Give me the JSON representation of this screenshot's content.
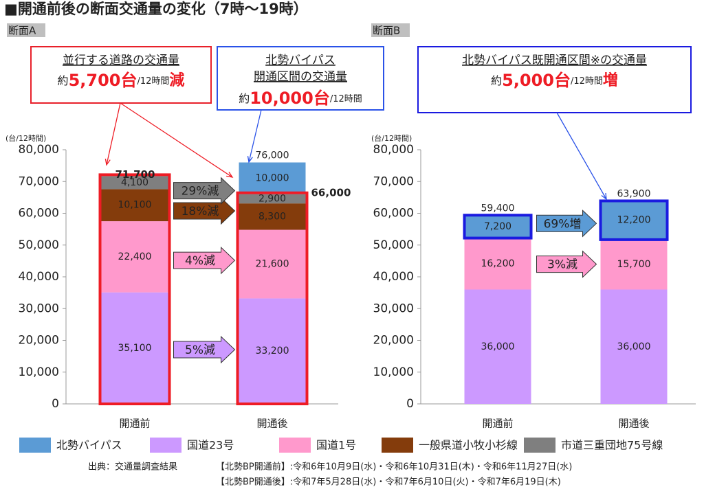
{
  "title": "■開通前後の断面交通量の変化（7時～19時）",
  "footer": {
    "source": "出典：交通量調査結果",
    "dates": [
      "【北勢BP開通前】:令和6年10月9日(水)・令和6年10月31日(木)・令和6年11月27日(水)",
      "【北勢BP開通後】:令和7年5月28日(水)・令和7年6月10日(火)・令和7年6月19日(木)"
    ]
  },
  "chart_data": [
    {
      "type": "bar",
      "stacked": true,
      "section": "断面A",
      "y_unit": "(台/12時間)",
      "categories": [
        "開通前",
        "開通後"
      ],
      "ylim": [
        0,
        80000
      ],
      "yticks": [
        0,
        {
          "value": 10000,
          "label": "10,000"
        },
        {
          "value": 20000,
          "label": "20,000"
        },
        {
          "value": 30000,
          "label": "30,000"
        },
        {
          "value": 40000,
          "label": "40,000"
        },
        {
          "value": 50000,
          "label": "50,000"
        },
        {
          "value": 60000,
          "label": "60,000"
        },
        {
          "value": 70000,
          "label": "70,000"
        },
        {
          "value": 80000,
          "label": "80,000"
        }
      ],
      "series": [
        {
          "name": "北勢バイパス",
          "color": "#5b9bd5",
          "label_color": "#ffffff",
          "values": [
            null,
            10000
          ],
          "value_labels": [
            null,
            "10,000"
          ]
        },
        {
          "name": "国道23号",
          "color": "#cc99ff",
          "label_color": "#ffffff",
          "values": [
            35100,
            33200
          ],
          "value_labels": [
            "35,100",
            "33,200"
          ],
          "change_label": "5%減"
        },
        {
          "name": "国道1号",
          "color": "#ff99cc",
          "label_color": "#444444",
          "values": [
            22400,
            21600
          ],
          "value_labels": [
            "22,400",
            "21,600"
          ],
          "change_label": "4%減"
        },
        {
          "name": "一般県道小牧小杉線",
          "color": "#843c0c",
          "label_color": "#ffffff",
          "values": [
            10100,
            8300
          ],
          "value_labels": [
            "10,100",
            "8,300"
          ],
          "change_label": "18%減"
        },
        {
          "name": "市道三重団地75号線",
          "color": "#7f7f7f",
          "label_color": "#ffffff",
          "values": [
            4100,
            2900
          ],
          "value_labels": [
            "4,100",
            "2,900"
          ],
          "change_label": "29%減"
        }
      ],
      "totals": {
        "values": [
          71700,
          76000
        ],
        "value_labels": [
          "71,700",
          "76,000"
        ]
      },
      "existing_total": {
        "value": 66000,
        "label": "66,000"
      },
      "callouts": [
        {
          "lines": [
            "並行する道路の交通量"
          ],
          "amount": [
            "約",
            "5,700台",
            "/12時間",
            "減"
          ],
          "color": "#e8202a"
        },
        {
          "lines": [
            "北勢バイパス",
            "開通区間の交通量"
          ],
          "amount": [
            "約",
            "10,000台",
            "/12時間"
          ],
          "color": "#2a52e8"
        }
      ]
    },
    {
      "type": "bar",
      "stacked": true,
      "section": "断面B",
      "y_unit": "(台/12時間)",
      "categories": [
        "開通前",
        "開通後"
      ],
      "ylim": [
        0,
        80000
      ],
      "yticks": [
        0,
        {
          "value": 10000,
          "label": "10,000"
        },
        {
          "value": 20000,
          "label": "20,000"
        },
        {
          "value": 30000,
          "label": "30,000"
        },
        {
          "value": 40000,
          "label": "40,000"
        },
        {
          "value": 50000,
          "label": "50,000"
        },
        {
          "value": 60000,
          "label": "60,000"
        },
        {
          "value": 70000,
          "label": "70,000"
        },
        {
          "value": 80000,
          "label": "80,000"
        }
      ],
      "series": [
        {
          "color": "#5b9bd5",
          "label_color": "#ffffff",
          "values": [
            7200,
            12200
          ],
          "value_labels": [
            "7,200",
            "12,200"
          ],
          "change_label": "69%増"
        },
        {
          "color": "#cc99ff",
          "label_color": "#ffffff",
          "values": [
            36000,
            36000
          ],
          "value_labels": [
            "36,000",
            "36,000"
          ]
        },
        {
          "color": "#ff99cc",
          "label_color": "#444444",
          "values": [
            16200,
            15700
          ],
          "value_labels": [
            "16,200",
            "15,700"
          ],
          "change_label": "3%減"
        }
      ],
      "totals": {
        "values": [
          59400,
          63900
        ],
        "value_labels": [
          "59,400",
          "63,900"
        ]
      },
      "callouts": [
        {
          "lines": [
            "北勢バイパス既開通区間※の交通量"
          ],
          "amount": [
            "約",
            "5,000台",
            "/12時間",
            "増"
          ],
          "color": "#1a1ae0"
        }
      ]
    }
  ]
}
